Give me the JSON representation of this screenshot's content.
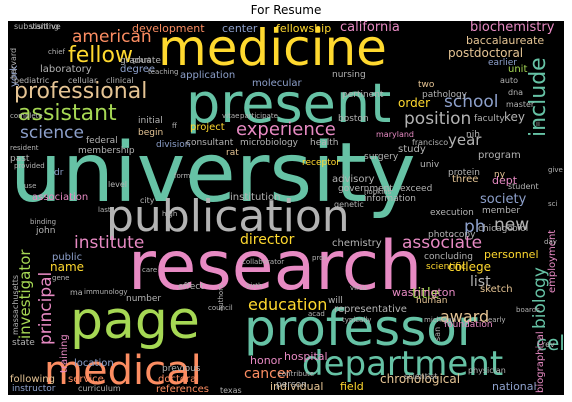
{
  "title": "For Resume",
  "words": [
    {
      "text": "university",
      "color": "#66c2a5"
    },
    {
      "text": "research",
      "color": "#e78ac3"
    },
    {
      "text": "medicine",
      "color": "#ffd92f"
    },
    {
      "text": "present",
      "color": "#66c2a5"
    },
    {
      "text": "publication",
      "color": "#b3b3b3"
    },
    {
      "text": "professor",
      "color": "#66c2a5"
    },
    {
      "text": "page",
      "color": "#a6d854"
    },
    {
      "text": "medical",
      "color": "#fc8d62"
    },
    {
      "text": "department",
      "color": "#66c2a5"
    },
    {
      "text": "professional",
      "color": "#e5c494"
    },
    {
      "text": "assistant",
      "color": "#a6d854"
    },
    {
      "text": "fellow",
      "color": "#ffd92f"
    },
    {
      "text": "american",
      "color": "#fc8d62"
    },
    {
      "text": "experience",
      "color": "#e78ac3"
    },
    {
      "text": "science",
      "color": "#8da0cb"
    },
    {
      "text": "position",
      "color": "#b3b3b3"
    },
    {
      "text": "school",
      "color": "#8da0cb"
    },
    {
      "text": "include",
      "color": "#66c2a5"
    },
    {
      "text": "institute",
      "color": "#e78ac3"
    },
    {
      "text": "director",
      "color": "#ffd92f"
    },
    {
      "text": "associate",
      "color": "#e78ac3"
    },
    {
      "text": "education",
      "color": "#ffd92f"
    },
    {
      "text": "award",
      "color": "#e5c494"
    },
    {
      "text": "cancer",
      "color": "#fc8d62"
    },
    {
      "text": "investigator",
      "color": "#a6d854"
    },
    {
      "text": "principal",
      "color": "#e78ac3"
    },
    {
      "text": "biology",
      "color": "#66c2a5"
    },
    {
      "text": "cell",
      "color": "#66c2a5"
    },
    {
      "text": "year",
      "color": "#b3b3b3"
    },
    {
      "text": "new",
      "color": "#b3b3b3"
    },
    {
      "text": "ph",
      "color": "#8da0cb"
    },
    {
      "text": "biochemistry",
      "color": "#e78ac3"
    },
    {
      "text": "fellowship",
      "color": "#ffd92f"
    },
    {
      "text": "california",
      "color": "#e78ac3"
    },
    {
      "text": "center",
      "color": "#8da0cb"
    },
    {
      "text": "development",
      "color": "#fc8d62"
    },
    {
      "text": "postdoctoral",
      "color": "#e5c494"
    },
    {
      "text": "baccalaureate",
      "color": "#e5c494"
    },
    {
      "text": "title",
      "color": "#a6d854"
    },
    {
      "text": "list",
      "color": "#b3b3b3"
    },
    {
      "text": "society",
      "color": "#8da0cb"
    },
    {
      "text": "college",
      "color": "#ffd92f"
    },
    {
      "text": "personnel",
      "color": "#ffd92f"
    },
    {
      "text": "order",
      "color": "#ffd92f"
    },
    {
      "text": "key",
      "color": "#b3b3b3"
    },
    {
      "text": "degree",
      "color": "#8da0cb"
    },
    {
      "text": "laboratory",
      "color": "#b3b3b3"
    },
    {
      "text": "application",
      "color": "#8da0cb"
    },
    {
      "text": "molecular",
      "color": "#8da0cb"
    },
    {
      "text": "project",
      "color": "#ffd92f"
    },
    {
      "text": "association",
      "color": "#e78ac3"
    },
    {
      "text": "institution",
      "color": "#b3b3b3"
    },
    {
      "text": "chemistry",
      "color": "#b3b3b3"
    },
    {
      "text": "honor",
      "color": "#e78ac3"
    },
    {
      "text": "hospital",
      "color": "#e78ac3"
    },
    {
      "text": "individual",
      "color": "#e5c494"
    },
    {
      "text": "field",
      "color": "#ffd92f"
    },
    {
      "text": "chronological",
      "color": "#e5c494"
    },
    {
      "text": "national",
      "color": "#8da0cb"
    },
    {
      "text": "program",
      "color": "#b3b3b3"
    },
    {
      "text": "study",
      "color": "#b3b3b3"
    },
    {
      "text": "advisory",
      "color": "#b3b3b3"
    },
    {
      "text": "dept",
      "color": "#e78ac3"
    },
    {
      "text": "three",
      "color": "#e5c494"
    },
    {
      "text": "sketch",
      "color": "#e5c494"
    },
    {
      "text": "biographical",
      "color": "#e78ac3"
    },
    {
      "text": "employment",
      "color": "#e78ac3"
    },
    {
      "text": "location",
      "color": "#8da0cb"
    },
    {
      "text": "training",
      "color": "#e78ac3"
    },
    {
      "text": "name",
      "color": "#ffd92f"
    },
    {
      "text": "public",
      "color": "#8da0cb"
    },
    {
      "text": "doctoral",
      "color": "#fc8d62"
    },
    {
      "text": "service",
      "color": "#fc8d62"
    },
    {
      "text": "following",
      "color": "#e5c494"
    },
    {
      "text": "representative",
      "color": "#b3b3b3"
    },
    {
      "text": "membership",
      "color": "#b3b3b3"
    },
    {
      "text": "begin",
      "color": "#e5c494"
    },
    {
      "text": "nursing",
      "color": "#b3b3b3"
    },
    {
      "text": "graduate",
      "color": "#b3b3b3"
    },
    {
      "text": "pertinent",
      "color": "#b3b3b3"
    },
    {
      "text": "pathology",
      "color": "#b3b3b3"
    },
    {
      "text": "information",
      "color": "#b3b3b3"
    },
    {
      "text": "execution",
      "color": "#b3b3b3"
    },
    {
      "text": "surgery",
      "color": "#b3b3b3"
    },
    {
      "text": "washington",
      "color": "#e78ac3"
    },
    {
      "text": "concluding",
      "color": "#b3b3b3"
    },
    {
      "text": "human",
      "color": "#e5c494"
    },
    {
      "text": "foundation",
      "color": "#e78ac3"
    },
    {
      "text": "unit",
      "color": "#a6d854"
    },
    {
      "text": "earlier",
      "color": "#8da0cb"
    },
    {
      "text": "york",
      "color": "#8da0cb"
    },
    {
      "text": "two",
      "color": "#e5c494"
    },
    {
      "text": "nih",
      "color": "#b3b3b3"
    },
    {
      "text": "univ",
      "color": "#b3b3b3"
    },
    {
      "text": "exceed",
      "color": "#b3b3b3"
    },
    {
      "text": "receptor",
      "color": "#ffd92f"
    },
    {
      "text": "rat",
      "color": "#e5c494"
    },
    {
      "text": "past",
      "color": "#b3b3b3"
    },
    {
      "text": "dr",
      "color": "#8da0cb"
    },
    {
      "text": "john",
      "color": "#b3b3b3"
    },
    {
      "text": "effect",
      "color": "#b3b3b3"
    },
    {
      "text": "number",
      "color": "#b3b3b3"
    },
    {
      "text": "state",
      "color": "#b3b3b3"
    },
    {
      "text": "will",
      "color": "#b3b3b3"
    },
    {
      "text": "scientific",
      "color": "#ffd92f"
    },
    {
      "text": "protein",
      "color": "#b3b3b3"
    },
    {
      "text": "member",
      "color": "#b3b3b3"
    },
    {
      "text": "biol",
      "color": "#b3b3b3"
    },
    {
      "text": "chicago",
      "color": "#b3b3b3"
    },
    {
      "text": "references",
      "color": "#fc8d62"
    },
    {
      "text": "previous",
      "color": "#b3b3b3"
    },
    {
      "text": "person",
      "color": "#b3b3b3"
    },
    {
      "text": "government",
      "color": "#b3b3b3"
    },
    {
      "text": "initial",
      "color": "#b3b3b3"
    },
    {
      "text": "federal",
      "color": "#b3b3b3"
    },
    {
      "text": "division",
      "color": "#8da0cb"
    },
    {
      "text": "consultant",
      "color": "#b3b3b3"
    },
    {
      "text": "microbiology",
      "color": "#b3b3b3"
    },
    {
      "text": "health",
      "color": "#b3b3b3"
    },
    {
      "text": "boston",
      "color": "#b3b3b3"
    },
    {
      "text": "faculty",
      "color": "#b3b3b3"
    },
    {
      "text": "instructor",
      "color": "#8da0cb"
    },
    {
      "text": "curriculum",
      "color": "#b3b3b3"
    },
    {
      "text": "texas",
      "color": "#b3b3b3"
    },
    {
      "text": "visiting",
      "color": "#b3b3b3"
    },
    {
      "text": "substantive",
      "color": "#b3b3b3"
    },
    {
      "text": "harvard",
      "color": "#b3b3b3"
    },
    {
      "text": "pediatric",
      "color": "#b3b3b3"
    },
    {
      "text": "cellular",
      "color": "#b3b3b3"
    },
    {
      "text": "clinical",
      "color": "#b3b3b3"
    },
    {
      "text": "ny",
      "color": "#e5c494"
    },
    {
      "text": "ma",
      "color": "#b3b3b3"
    },
    {
      "text": "photocopy",
      "color": "#b3b3b3"
    },
    {
      "text": "student",
      "color": "#b3b3b3"
    },
    {
      "text": "massachusetts",
      "color": "#b3b3b3"
    },
    {
      "text": "auto",
      "color": "#b3b3b3"
    },
    {
      "text": "maryland",
      "color": "#e78ac3"
    },
    {
      "text": "dna",
      "color": "#b3b3b3"
    },
    {
      "text": "master",
      "color": "#b3b3b3"
    },
    {
      "text": "san",
      "color": "#b3b3b3"
    },
    {
      "text": "francisco",
      "color": "#b3b3b3"
    },
    {
      "text": "genetic",
      "color": "#b3b3b3"
    },
    {
      "text": "rev",
      "color": "#b3b3b3"
    },
    {
      "text": "physician",
      "color": "#b3b3b3"
    },
    {
      "text": "scientist",
      "color": "#b3b3b3"
    },
    {
      "text": "city",
      "color": "#b3b3b3"
    },
    {
      "text": "level",
      "color": "#b3b3b3"
    },
    {
      "text": "vitae",
      "color": "#b3b3b3"
    },
    {
      "text": "participate",
      "color": "#b3b3b3"
    },
    {
      "text": "grant",
      "color": "#b3b3b3"
    },
    {
      "text": "teaching",
      "color": "#b3b3b3"
    },
    {
      "text": "complete",
      "color": "#b3b3b3"
    },
    {
      "text": "resident",
      "color": "#b3b3b3"
    },
    {
      "text": "provided",
      "color": "#b3b3b3"
    },
    {
      "text": "form",
      "color": "#b3b3b3"
    },
    {
      "text": "gene",
      "color": "#b3b3b3"
    },
    {
      "text": "binding",
      "color": "#b3b3b3"
    },
    {
      "text": "collaborator",
      "color": "#b3b3b3"
    },
    {
      "text": "authors",
      "color": "#b3b3b3"
    },
    {
      "text": "immunology",
      "color": "#b3b3b3"
    },
    {
      "text": "council",
      "color": "#b3b3b3"
    },
    {
      "text": "birth",
      "color": "#b3b3b3"
    },
    {
      "text": "virus",
      "color": "#b3b3b3"
    },
    {
      "text": "hopkins",
      "color": "#b3b3b3"
    },
    {
      "text": "michigan",
      "color": "#b3b3b3"
    },
    {
      "text": "typically",
      "color": "#b3b3b3"
    },
    {
      "text": "contribute",
      "color": "#b3b3b3"
    },
    {
      "text": "ff",
      "color": "#b3b3b3"
    },
    {
      "text": "ii",
      "color": "#b3b3b3"
    },
    {
      "text": "use",
      "color": "#b3b3b3"
    },
    {
      "text": "last",
      "color": "#b3b3b3"
    },
    {
      "text": "high",
      "color": "#b3b3b3"
    },
    {
      "text": "give",
      "color": "#b3b3b3"
    },
    {
      "text": "chief",
      "color": "#b3b3b3"
    },
    {
      "text": "acad",
      "color": "#b3b3b3"
    },
    {
      "text": "sci",
      "color": "#b3b3b3"
    },
    {
      "text": "proc",
      "color": "#b3b3b3"
    },
    {
      "text": "day",
      "color": "#b3b3b3"
    },
    {
      "text": "early",
      "color": "#b3b3b3"
    },
    {
      "text": "boards",
      "color": "#b3b3b3"
    },
    {
      "text": "care",
      "color": "#b3b3b3"
    }
  ]
}
